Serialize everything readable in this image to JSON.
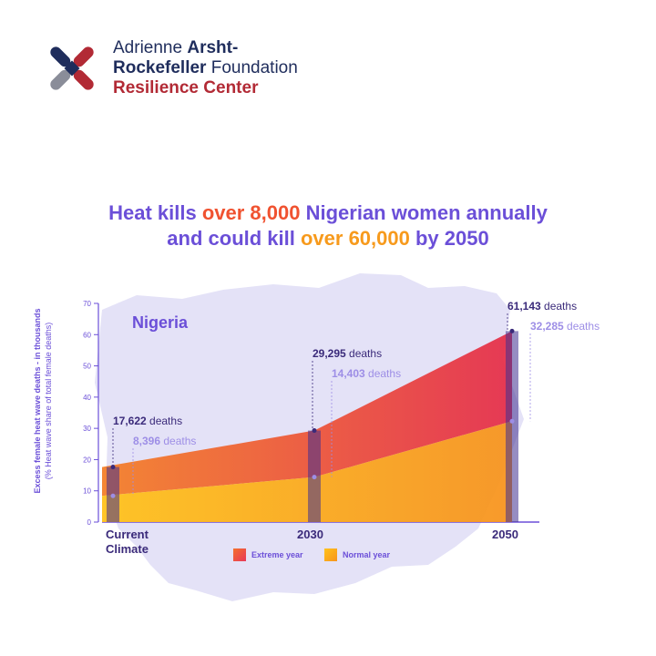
{
  "org": {
    "line1_a": "Adrienne ",
    "line1_b": "Arsht-",
    "line2_a": "Rockefeller",
    "line2_b": " Foundation",
    "line3": "Resilience Center"
  },
  "headline": {
    "l1_a": "Heat kills ",
    "l1_b": "over 8,000",
    "l1_c": " Nigerian women annually",
    "l2_a": "and could kill ",
    "l2_b": "over 60,000",
    "l2_c": " by 2050"
  },
  "map_label": "Nigeria",
  "chart_data": {
    "type": "area",
    "categories": [
      "Current Climate",
      "2030",
      "2050"
    ],
    "x_labels": [
      "Current\nClimate",
      "2030",
      "2050"
    ],
    "ylabel": "Excess female heat wave deaths - in thousands",
    "ylabel_sub": "(% Heat wave share of total female deaths)",
    "ylim": [
      0,
      70
    ],
    "yticks": [
      0,
      10,
      20,
      30,
      40,
      50,
      60,
      70
    ],
    "series": [
      {
        "name": "Extreme year",
        "values": [
          17.622,
          29.295,
          61.143
        ],
        "labels": [
          "17,622",
          "29,295",
          "61,143"
        ],
        "unit": " deaths",
        "color": "#ef4a3c"
      },
      {
        "name": "Normal year",
        "values": [
          8.396,
          14.403,
          32.285
        ],
        "labels": [
          "8,396",
          "14,403",
          "32,285"
        ],
        "unit": " deaths",
        "color": "#f8a51c"
      }
    ],
    "legend": "bottom"
  },
  "colors": {
    "purple": "#6b4fd8",
    "dark_blue": "#1f2d5c",
    "red": "#b22a35",
    "map": "#e4e2f7",
    "axis": "#6b4fd8"
  }
}
